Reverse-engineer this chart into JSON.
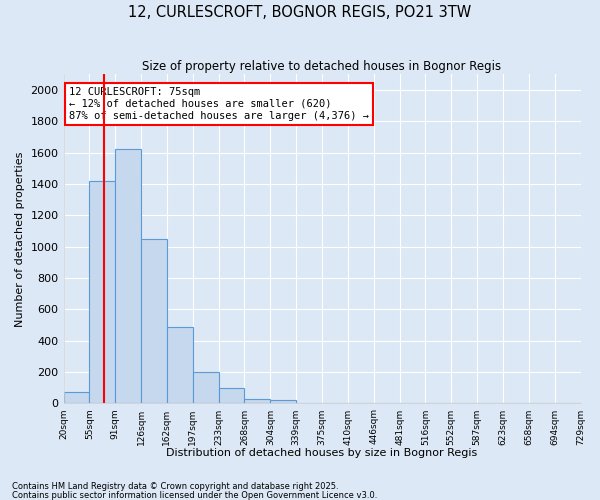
{
  "title": "12, CURLESCROFT, BOGNOR REGIS, PO21 3TW",
  "subtitle": "Size of property relative to detached houses in Bognor Regis",
  "xlabel": "Distribution of detached houses by size in Bognor Regis",
  "ylabel": "Number of detached properties",
  "bar_values": [
    75,
    1420,
    1620,
    1050,
    490,
    200,
    100,
    30,
    20,
    5,
    3,
    2,
    1,
    1,
    0,
    0,
    0,
    0,
    0,
    0
  ],
  "bin_labels": [
    "20sqm",
    "55sqm",
    "91sqm",
    "126sqm",
    "162sqm",
    "197sqm",
    "233sqm",
    "268sqm",
    "304sqm",
    "339sqm",
    "375sqm",
    "410sqm",
    "446sqm",
    "481sqm",
    "516sqm",
    "552sqm",
    "587sqm",
    "623sqm",
    "658sqm",
    "694sqm",
    "729sqm"
  ],
  "bar_color": "#c5d8ee",
  "bar_edge_color": "#5b9bd5",
  "background_color": "#dce8f5",
  "grid_color": "#ffffff",
  "vline_color": "red",
  "vline_bar_index": 1.5,
  "annotation_text": "12 CURLESCROFT: 75sqm\n← 12% of detached houses are smaller (620)\n87% of semi-detached houses are larger (4,376) →",
  "annotation_box_color": "white",
  "annotation_box_edge": "red",
  "ylim": [
    0,
    2100
  ],
  "yticks": [
    0,
    200,
    400,
    600,
    800,
    1000,
    1200,
    1400,
    1600,
    1800,
    2000
  ],
  "footnote1": "Contains HM Land Registry data © Crown copyright and database right 2025.",
  "footnote2": "Contains public sector information licensed under the Open Government Licence v3.0.",
  "n_bars": 20,
  "property_sqm": 75,
  "bin_start_sqm": [
    20,
    55,
    91,
    126,
    162,
    197,
    233,
    268,
    304,
    339,
    375,
    410,
    446,
    481,
    516,
    552,
    587,
    623,
    658,
    694,
    729
  ]
}
